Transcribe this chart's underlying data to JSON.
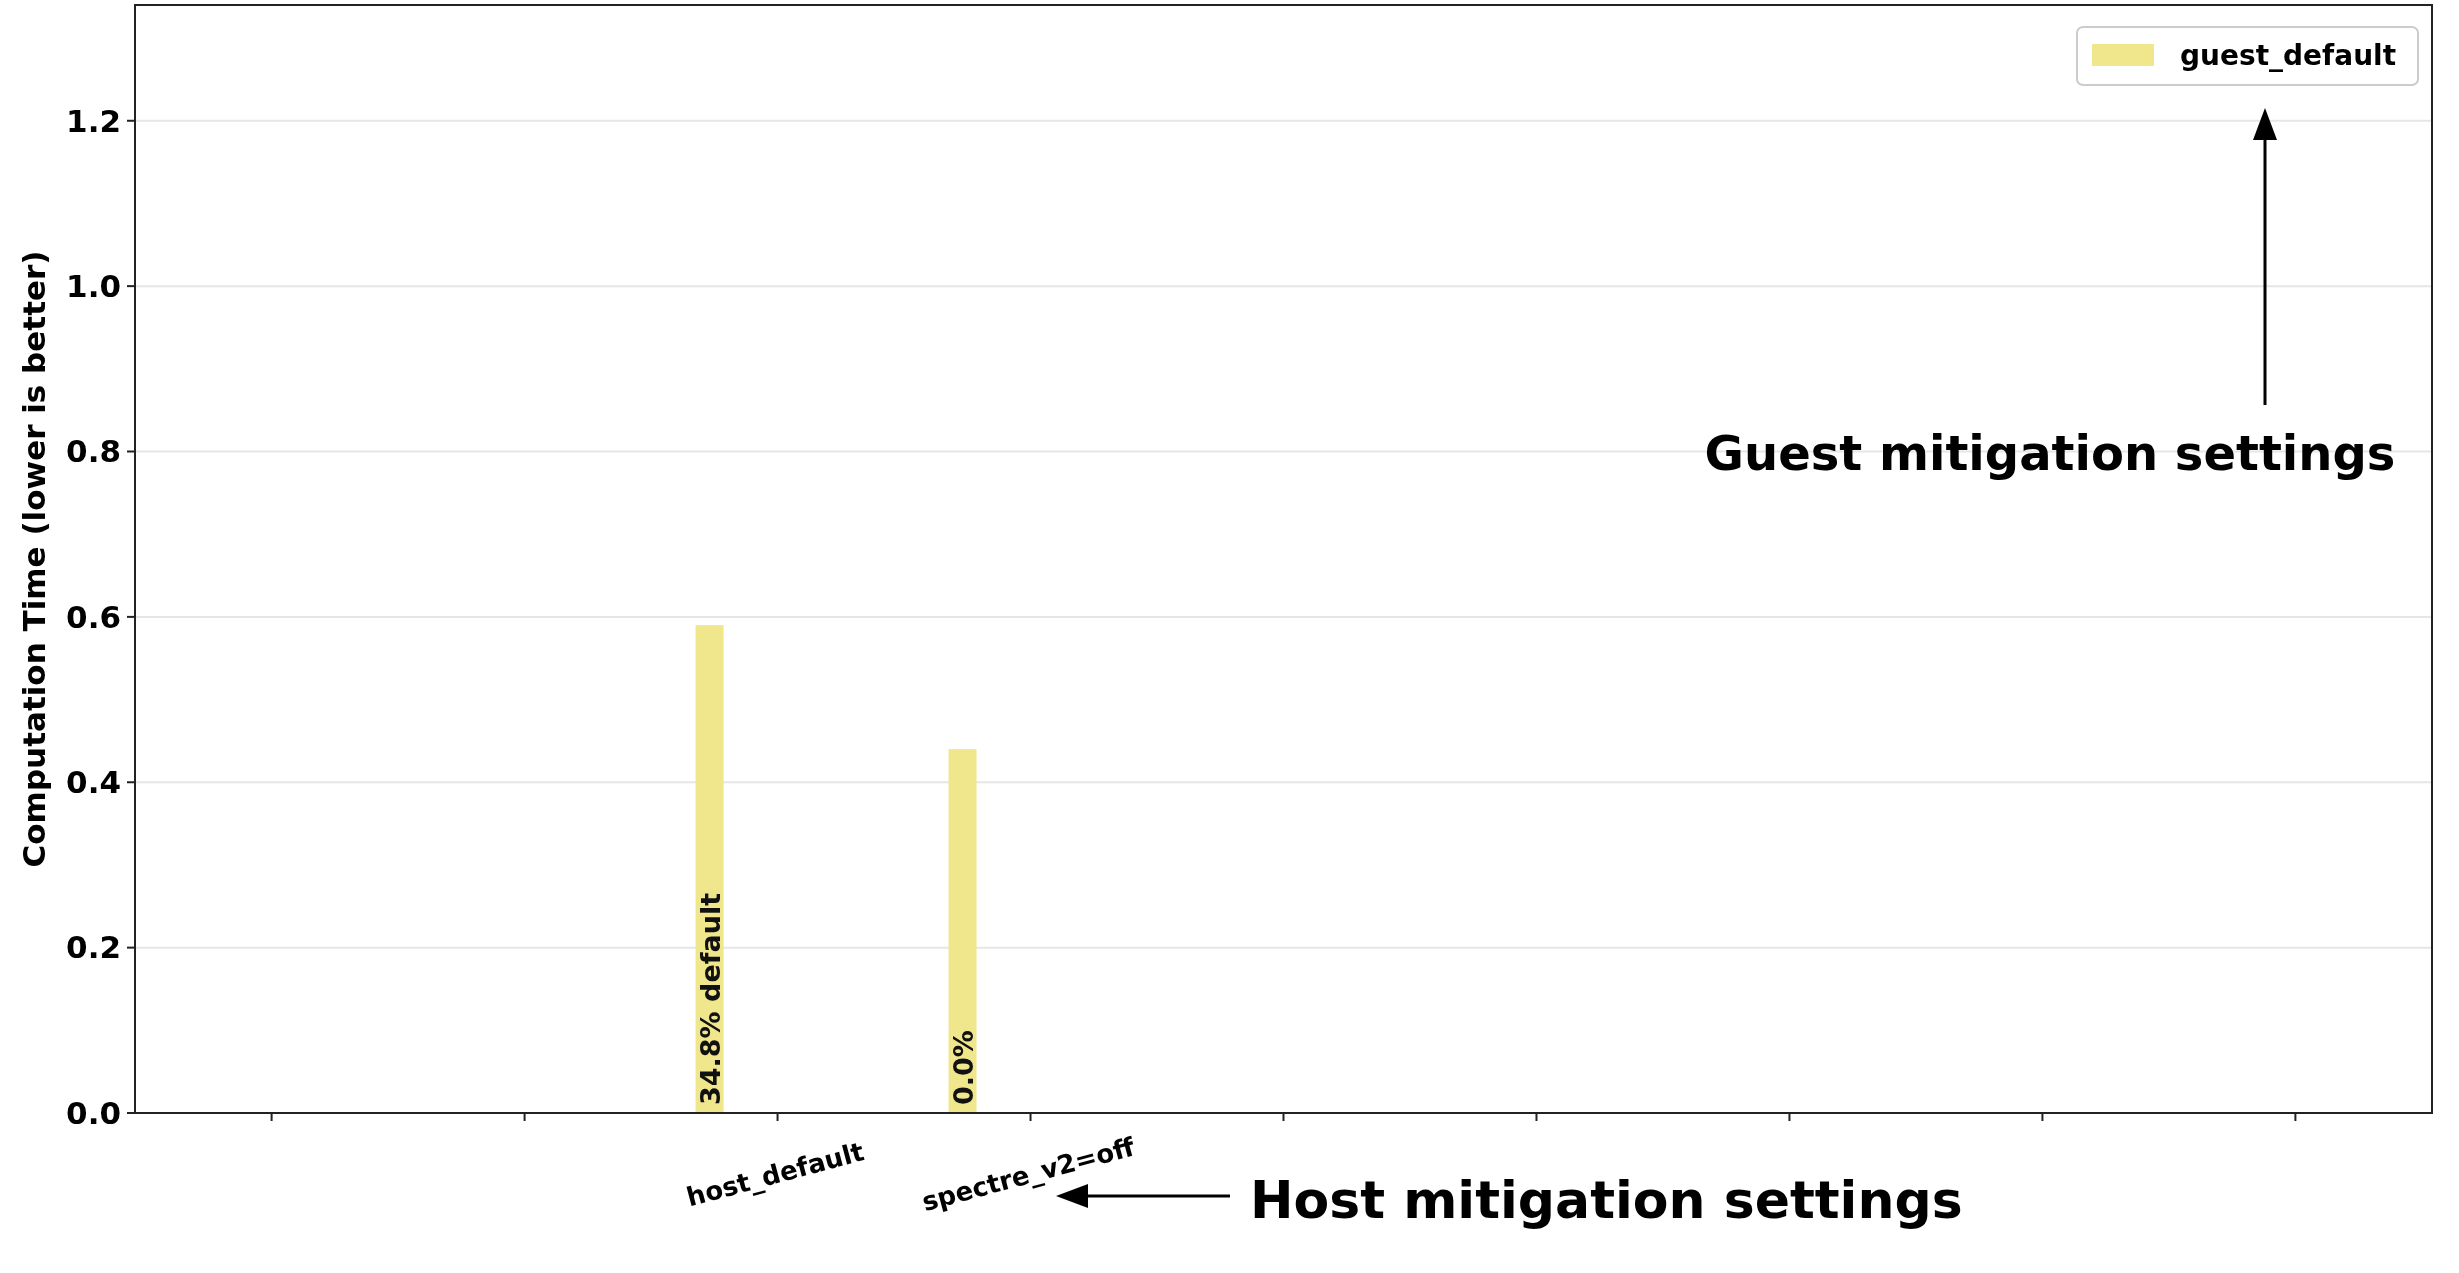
{
  "chart_data": {
    "type": "bar",
    "ylabel": "Computation Time (lower is better)",
    "categories": [
      null,
      null,
      "host_default",
      "spectre_v2=off",
      null,
      null,
      null,
      null,
      null
    ],
    "series": [
      {
        "name": "guest_default",
        "color": "#f0e68c",
        "values": [
          null,
          null,
          0.59,
          0.44,
          null,
          null,
          null,
          null,
          null
        ]
      }
    ],
    "ylim": [
      0,
      1.34
    ],
    "yticks": [
      {
        "value": 0,
        "label": "0.0"
      },
      0.2,
      0.4,
      0.6,
      0.8,
      {
        "value": 1,
        "label": "1.0"
      },
      1.2
    ],
    "grid": "y",
    "legend": "top right",
    "annotations": [
      "Guest mitigation settings",
      "Host mitigation settings",
      "34.8% default",
      "0.0%"
    ]
  }
}
